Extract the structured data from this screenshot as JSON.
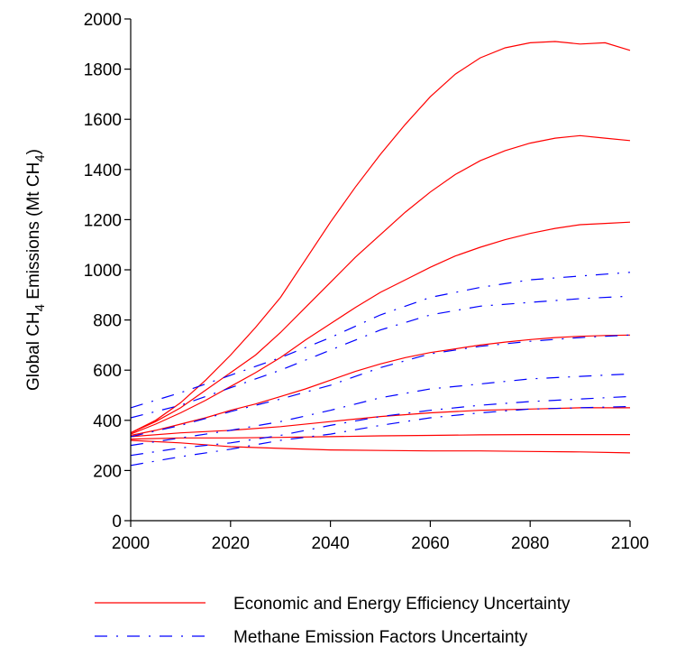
{
  "chart_data": {
    "type": "line",
    "ylabel": {
      "prefix": "Global CH",
      "sub": "4",
      "middle": " Emissions (Mt CH",
      "sub2": "4",
      "suffix": ")"
    },
    "xlim": [
      2000,
      2100
    ],
    "ylim": [
      0,
      2000
    ],
    "xticks": [
      2000,
      2020,
      2040,
      2060,
      2080,
      2100
    ],
    "yticks": [
      0,
      200,
      400,
      600,
      800,
      1000,
      1200,
      1400,
      1600,
      1800,
      2000
    ],
    "grid": false,
    "legend_position": "bottom",
    "groups": [
      {
        "name": "Economic and Energy Efficiency Uncertainty",
        "color": "#ff0000",
        "style": "solid",
        "series": [
          {
            "x": [
              2000,
              2005,
              2010,
              2015,
              2020,
              2025,
              2030,
              2035,
              2040,
              2045,
              2050,
              2055,
              2060,
              2065,
              2070,
              2075,
              2080,
              2085,
              2090,
              2095,
              2100
            ],
            "values": [
              350,
              400,
              470,
              560,
              660,
              770,
              890,
              1040,
              1190,
              1330,
              1460,
              1580,
              1690,
              1780,
              1845,
              1885,
              1905,
              1910,
              1900,
              1905,
              1875
            ]
          },
          {
            "x": [
              2000,
              2005,
              2010,
              2015,
              2020,
              2025,
              2030,
              2035,
              2040,
              2045,
              2050,
              2055,
              2060,
              2065,
              2070,
              2075,
              2080,
              2085,
              2090,
              2095,
              2100
            ],
            "values": [
              350,
              395,
              450,
              520,
              590,
              660,
              750,
              850,
              950,
              1050,
              1140,
              1230,
              1310,
              1380,
              1435,
              1475,
              1505,
              1525,
              1535,
              1525,
              1515
            ]
          },
          {
            "x": [
              2000,
              2005,
              2010,
              2015,
              2020,
              2025,
              2030,
              2035,
              2040,
              2045,
              2050,
              2055,
              2060,
              2065,
              2070,
              2075,
              2080,
              2085,
              2090,
              2095,
              2100
            ],
            "values": [
              345,
              385,
              430,
              480,
              535,
              590,
              650,
              720,
              785,
              850,
              910,
              960,
              1010,
              1055,
              1090,
              1120,
              1145,
              1165,
              1180,
              1185,
              1190
            ]
          },
          {
            "x": [
              2000,
              2005,
              2010,
              2015,
              2020,
              2025,
              2030,
              2035,
              2040,
              2045,
              2050,
              2055,
              2060,
              2065,
              2070,
              2075,
              2080,
              2085,
              2090,
              2095,
              2100
            ],
            "values": [
              340,
              360,
              385,
              410,
              440,
              465,
              495,
              525,
              560,
              595,
              625,
              650,
              670,
              685,
              700,
              712,
              722,
              730,
              735,
              738,
              740
            ]
          },
          {
            "x": [
              2000,
              2010,
              2020,
              2030,
              2040,
              2050,
              2060,
              2070,
              2080,
              2090,
              2100
            ],
            "values": [
              335,
              350,
              360,
              375,
              395,
              415,
              430,
              440,
              445,
              450,
              450
            ]
          },
          {
            "x": [
              2000,
              2010,
              2020,
              2030,
              2040,
              2050,
              2060,
              2070,
              2080,
              2090,
              2100
            ],
            "values": [
              325,
              330,
              330,
              332,
              335,
              338,
              340,
              342,
              343,
              343,
              343
            ]
          },
          {
            "x": [
              2000,
              2010,
              2020,
              2030,
              2040,
              2050,
              2060,
              2070,
              2080,
              2090,
              2100
            ],
            "values": [
              320,
              310,
              295,
              288,
              282,
              280,
              278,
              278,
              276,
              274,
              270
            ]
          }
        ]
      },
      {
        "name": "Methane Emission Factors Uncertainty",
        "color": "#0000ff",
        "style": "dashdot",
        "series": [
          {
            "x": [
              2000,
              2010,
              2020,
              2030,
              2040,
              2050,
              2060,
              2070,
              2080,
              2090,
              2100
            ],
            "values": [
              450,
              510,
              580,
              650,
              730,
              820,
              890,
              930,
              960,
              975,
              990
            ]
          },
          {
            "x": [
              2000,
              2010,
              2020,
              2030,
              2040,
              2050,
              2060,
              2070,
              2080,
              2090,
              2100
            ],
            "values": [
              410,
              460,
              530,
              600,
              680,
              760,
              820,
              855,
              870,
              885,
              895
            ]
          },
          {
            "x": [
              2000,
              2010,
              2020,
              2030,
              2040,
              2050,
              2060,
              2070,
              2080,
              2090,
              2100
            ],
            "values": [
              335,
              380,
              435,
              485,
              540,
              610,
              665,
              695,
              715,
              730,
              740
            ]
          },
          {
            "x": [
              2000,
              2010,
              2020,
              2030,
              2040,
              2050,
              2060,
              2070,
              2080,
              2090,
              2100
            ],
            "values": [
              300,
              330,
              360,
              395,
              440,
              490,
              525,
              545,
              565,
              575,
              585
            ]
          },
          {
            "x": [
              2000,
              2010,
              2020,
              2030,
              2040,
              2050,
              2060,
              2070,
              2080,
              2090,
              2100
            ],
            "values": [
              260,
              290,
              310,
              340,
              380,
              415,
              440,
              460,
              475,
              485,
              495
            ]
          },
          {
            "x": [
              2000,
              2010,
              2020,
              2030,
              2040,
              2050,
              2060,
              2070,
              2080,
              2090,
              2100
            ],
            "values": [
              220,
              255,
              285,
              320,
              345,
              380,
              410,
              430,
              445,
              450,
              455
            ]
          }
        ]
      }
    ]
  }
}
